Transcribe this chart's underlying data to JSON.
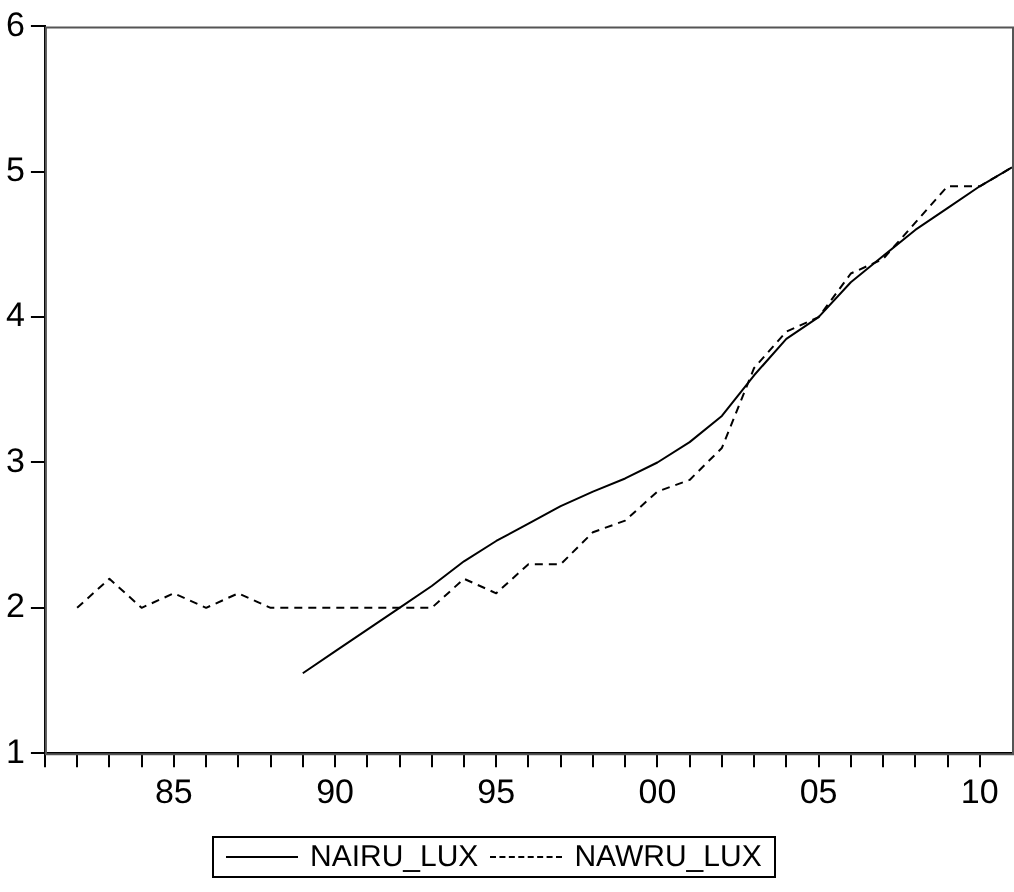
{
  "chart_data": {
    "type": "line",
    "xlim": [
      1981,
      2011
    ],
    "xticks": [
      {
        "value": 1981,
        "label": null
      },
      {
        "value": 1982,
        "label": null
      },
      {
        "value": 1983,
        "label": null
      },
      {
        "value": 1984,
        "label": null
      },
      {
        "value": 1985,
        "label": "85"
      },
      {
        "value": 1986,
        "label": null
      },
      {
        "value": 1987,
        "label": null
      },
      {
        "value": 1988,
        "label": null
      },
      {
        "value": 1989,
        "label": null
      },
      {
        "value": 1990,
        "label": "90"
      },
      {
        "value": 1991,
        "label": null
      },
      {
        "value": 1992,
        "label": null
      },
      {
        "value": 1993,
        "label": null
      },
      {
        "value": 1994,
        "label": null
      },
      {
        "value": 1995,
        "label": "95"
      },
      {
        "value": 1996,
        "label": null
      },
      {
        "value": 1997,
        "label": null
      },
      {
        "value": 1998,
        "label": null
      },
      {
        "value": 1999,
        "label": null
      },
      {
        "value": 2000,
        "label": "00"
      },
      {
        "value": 2001,
        "label": null
      },
      {
        "value": 2002,
        "label": null
      },
      {
        "value": 2003,
        "label": null
      },
      {
        "value": 2004,
        "label": null
      },
      {
        "value": 2005,
        "label": "05"
      },
      {
        "value": 2006,
        "label": null
      },
      {
        "value": 2007,
        "label": null
      },
      {
        "value": 2008,
        "label": null
      },
      {
        "value": 2009,
        "label": null
      },
      {
        "value": 2010,
        "label": "10"
      }
    ],
    "ylim": [
      1,
      6
    ],
    "yticks": [
      1,
      2,
      3,
      4,
      5,
      6
    ],
    "grid": false,
    "legend": "bottom",
    "marker": "none",
    "series": [
      {
        "name": "NAIRU_LUX",
        "color": "#000000",
        "line_style": "solid",
        "x": [
          1989,
          1990,
          1991,
          1992,
          1993,
          1994,
          1995,
          1996,
          1997,
          1998,
          1999,
          2000,
          2001,
          2002,
          2003,
          2004,
          2005,
          2006,
          2007,
          2008,
          2009,
          2010,
          2011
        ],
        "values": [
          1.55,
          1.7,
          1.85,
          2.0,
          2.15,
          2.32,
          2.46,
          2.58,
          2.7,
          2.8,
          2.89,
          3.0,
          3.14,
          3.32,
          3.6,
          3.85,
          4.0,
          4.24,
          4.42,
          4.6,
          4.75,
          4.9,
          5.03
        ]
      },
      {
        "name": "NAWRU_LUX",
        "color": "#000000",
        "line_style": "dashed",
        "x": [
          1982,
          1983,
          1984,
          1985,
          1986,
          1987,
          1988,
          1989,
          1990,
          1991,
          1992,
          1993,
          1994,
          1995,
          1996,
          1997,
          1998,
          1999,
          2000,
          2001,
          2002,
          2003,
          2004,
          2005,
          2006,
          2007,
          2008,
          2009,
          2010,
          2011
        ],
        "values": [
          2.0,
          2.2,
          2.0,
          2.1,
          2.0,
          2.1,
          2.0,
          2.0,
          2.0,
          2.0,
          2.0,
          2.0,
          2.2,
          2.1,
          2.3,
          2.3,
          2.52,
          2.6,
          2.8,
          2.88,
          3.1,
          3.65,
          3.9,
          4.0,
          4.3,
          4.4,
          4.65,
          4.9,
          4.9,
          5.03
        ]
      }
    ]
  }
}
